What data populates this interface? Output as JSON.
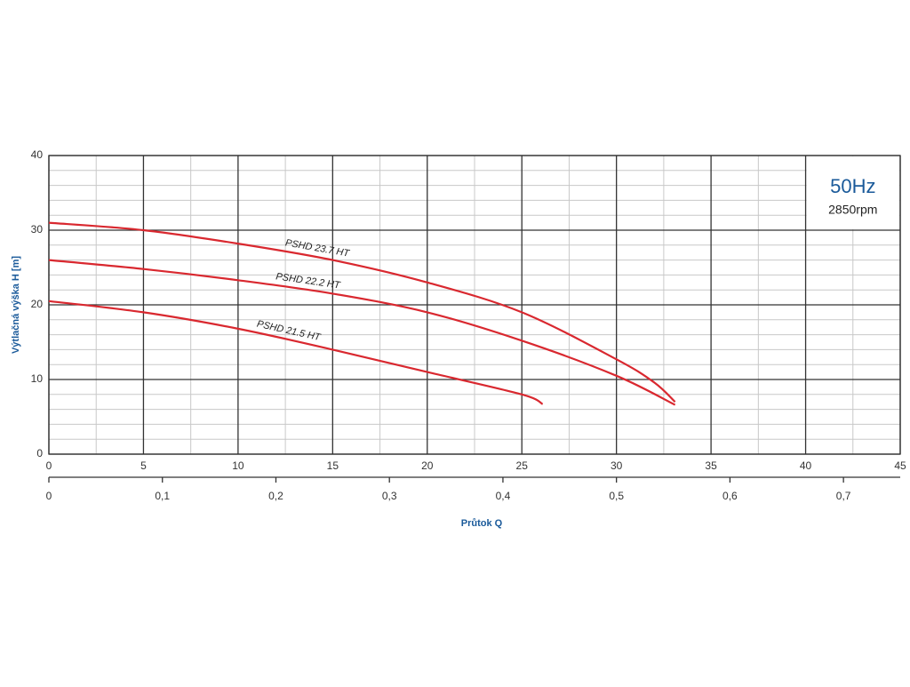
{
  "chart_data": {
    "type": "line",
    "y_label": "Výtlačná výška H [m]",
    "x2_label": "Průtok Q",
    "info_title": "50Hz",
    "info_subtitle": "2850rpm",
    "xlim": [
      0,
      45
    ],
    "xticks": [
      0,
      5,
      10,
      15,
      20,
      25,
      30,
      35,
      40,
      45
    ],
    "xminorticks": [
      2.5,
      7.5,
      12.5,
      17.5,
      22.5,
      27.5,
      32.5,
      37.5,
      42.5
    ],
    "ylim": [
      0,
      40
    ],
    "yticks": [
      0,
      10,
      20,
      30,
      40
    ],
    "yminorticks": [
      2,
      4,
      6,
      8,
      12,
      14,
      16,
      18,
      22,
      24,
      26,
      28,
      32,
      34,
      36,
      38
    ],
    "x2lim": [
      0,
      0.75
    ],
    "x2ticks": [
      0,
      {
        "value": 0.1,
        "label": "0,1"
      },
      {
        "value": 0.2,
        "label": "0,2"
      },
      {
        "value": 0.3,
        "label": "0,3"
      },
      {
        "value": 0.4,
        "label": "0,4"
      },
      {
        "value": 0.5,
        "label": "0,5"
      },
      {
        "value": 0.6,
        "label": "0,6"
      },
      {
        "value": 0.7,
        "label": "0,7"
      }
    ],
    "grid": true,
    "series": [
      {
        "name": "PSHD 23.7 HT",
        "color": "#d9282f",
        "x": [
          0,
          5,
          10,
          15,
          20,
          25,
          30,
          32,
          33.1
        ],
        "values": [
          31,
          30,
          28.2,
          26,
          23,
          19,
          12.7,
          9.6,
          7
        ]
      },
      {
        "name": "PSHD 22.2 HT",
        "color": "#d9282f",
        "x": [
          0,
          5,
          10,
          15,
          20,
          25,
          30,
          33.1
        ],
        "values": [
          26,
          24.8,
          23.3,
          21.5,
          19,
          15.2,
          10.5,
          6.6
        ]
      },
      {
        "name": "PSHD 21.5 HT",
        "color": "#d9282f",
        "x": [
          0,
          5,
          10,
          15,
          20,
          25,
          26.1
        ],
        "values": [
          20.5,
          19,
          16.8,
          14,
          11,
          8,
          6.7
        ]
      }
    ]
  }
}
